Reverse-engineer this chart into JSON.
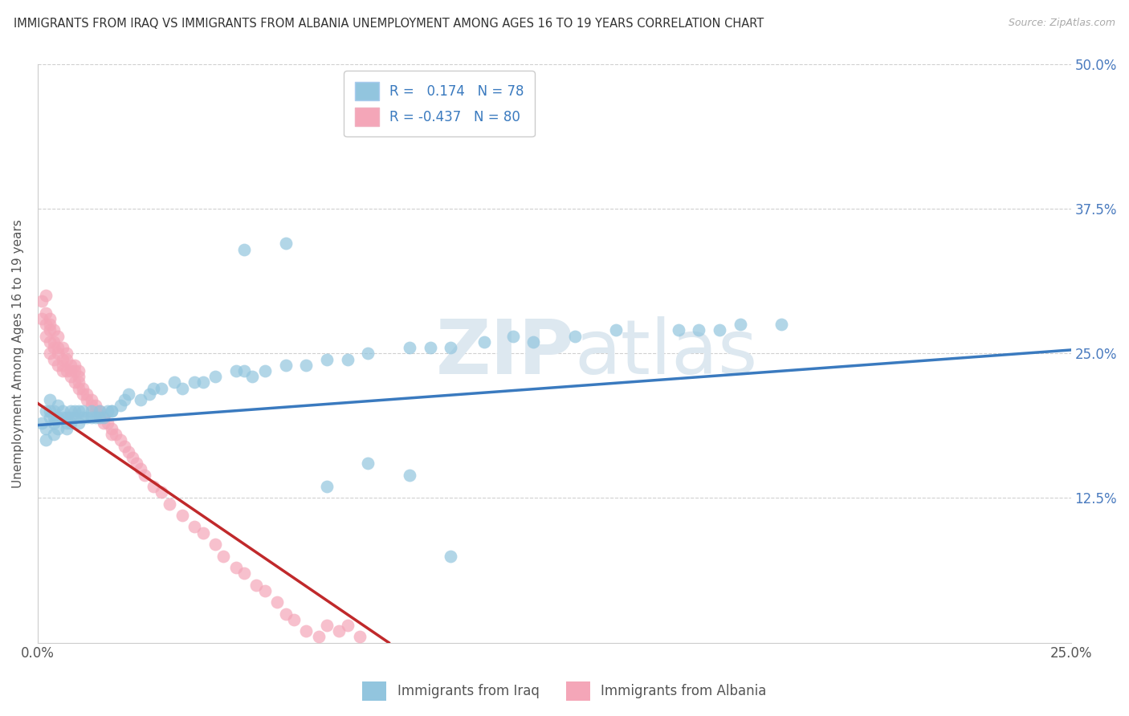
{
  "title": "IMMIGRANTS FROM IRAQ VS IMMIGRANTS FROM ALBANIA UNEMPLOYMENT AMONG AGES 16 TO 19 YEARS CORRELATION CHART",
  "source": "Source: ZipAtlas.com",
  "ylabel": "Unemployment Among Ages 16 to 19 years",
  "xlabel_iraq": "Immigrants from Iraq",
  "xlabel_albania": "Immigrants from Albania",
  "xlim": [
    0.0,
    0.25
  ],
  "ylim": [
    0.0,
    0.5
  ],
  "R_iraq": 0.174,
  "N_iraq": 78,
  "R_albania": -0.437,
  "N_albania": 80,
  "color_iraq": "#92c5de",
  "color_albania": "#f4a6b8",
  "line_color_iraq": "#3a7abf",
  "line_color_albania": "#c0292b",
  "background_color": "#ffffff",
  "grid_color": "#d0d0d0",
  "title_color": "#333333",
  "watermark_color": "#e0e8f0",
  "iraq_line_x0": 0.0,
  "iraq_line_y0": 0.188,
  "iraq_line_x1": 0.25,
  "iraq_line_y1": 0.253,
  "albania_line_x0": 0.0,
  "albania_line_y0": 0.207,
  "albania_line_x1": 0.085,
  "albania_line_y1": 0.0,
  "iraq_x": [
    0.001,
    0.002,
    0.002,
    0.002,
    0.003,
    0.003,
    0.003,
    0.004,
    0.004,
    0.004,
    0.004,
    0.005,
    0.005,
    0.005,
    0.006,
    0.006,
    0.007,
    0.007,
    0.007,
    0.008,
    0.008,
    0.008,
    0.009,
    0.009,
    0.01,
    0.01,
    0.011,
    0.011,
    0.012,
    0.013,
    0.013,
    0.014,
    0.015,
    0.015,
    0.016,
    0.017,
    0.018,
    0.018,
    0.02,
    0.021,
    0.022,
    0.025,
    0.027,
    0.028,
    0.03,
    0.033,
    0.035,
    0.038,
    0.04,
    0.043,
    0.048,
    0.05,
    0.052,
    0.055,
    0.06,
    0.065,
    0.07,
    0.075,
    0.08,
    0.09,
    0.095,
    0.1,
    0.108,
    0.115,
    0.12,
    0.13,
    0.14,
    0.155,
    0.16,
    0.165,
    0.17,
    0.18,
    0.05,
    0.06,
    0.07,
    0.08,
    0.09,
    0.1
  ],
  "iraq_y": [
    0.19,
    0.2,
    0.185,
    0.175,
    0.195,
    0.2,
    0.21,
    0.19,
    0.18,
    0.2,
    0.195,
    0.195,
    0.205,
    0.185,
    0.195,
    0.2,
    0.19,
    0.195,
    0.185,
    0.195,
    0.2,
    0.19,
    0.195,
    0.2,
    0.19,
    0.2,
    0.195,
    0.2,
    0.195,
    0.2,
    0.195,
    0.195,
    0.195,
    0.2,
    0.195,
    0.2,
    0.2,
    0.2,
    0.205,
    0.21,
    0.215,
    0.21,
    0.215,
    0.22,
    0.22,
    0.225,
    0.22,
    0.225,
    0.225,
    0.23,
    0.235,
    0.235,
    0.23,
    0.235,
    0.24,
    0.24,
    0.245,
    0.245,
    0.25,
    0.255,
    0.255,
    0.255,
    0.26,
    0.265,
    0.26,
    0.265,
    0.27,
    0.27,
    0.27,
    0.27,
    0.275,
    0.275,
    0.34,
    0.345,
    0.135,
    0.155,
    0.145,
    0.075
  ],
  "albania_x": [
    0.001,
    0.001,
    0.002,
    0.002,
    0.002,
    0.002,
    0.003,
    0.003,
    0.003,
    0.003,
    0.003,
    0.004,
    0.004,
    0.004,
    0.004,
    0.005,
    0.005,
    0.005,
    0.005,
    0.006,
    0.006,
    0.006,
    0.006,
    0.007,
    0.007,
    0.007,
    0.008,
    0.008,
    0.008,
    0.009,
    0.009,
    0.009,
    0.01,
    0.01,
    0.01,
    0.01,
    0.011,
    0.011,
    0.012,
    0.012,
    0.013,
    0.013,
    0.014,
    0.014,
    0.015,
    0.015,
    0.016,
    0.016,
    0.017,
    0.018,
    0.018,
    0.019,
    0.02,
    0.021,
    0.022,
    0.023,
    0.024,
    0.025,
    0.026,
    0.028,
    0.03,
    0.032,
    0.035,
    0.038,
    0.04,
    0.043,
    0.045,
    0.048,
    0.05,
    0.053,
    0.055,
    0.058,
    0.06,
    0.062,
    0.065,
    0.068,
    0.07,
    0.073,
    0.075,
    0.078
  ],
  "albania_y": [
    0.28,
    0.295,
    0.285,
    0.275,
    0.265,
    0.3,
    0.275,
    0.26,
    0.27,
    0.28,
    0.25,
    0.26,
    0.27,
    0.245,
    0.255,
    0.25,
    0.265,
    0.24,
    0.255,
    0.245,
    0.255,
    0.235,
    0.24,
    0.245,
    0.235,
    0.25,
    0.24,
    0.23,
    0.235,
    0.235,
    0.225,
    0.24,
    0.22,
    0.23,
    0.225,
    0.235,
    0.22,
    0.215,
    0.215,
    0.21,
    0.21,
    0.205,
    0.205,
    0.2,
    0.195,
    0.2,
    0.19,
    0.195,
    0.19,
    0.185,
    0.18,
    0.18,
    0.175,
    0.17,
    0.165,
    0.16,
    0.155,
    0.15,
    0.145,
    0.135,
    0.13,
    0.12,
    0.11,
    0.1,
    0.095,
    0.085,
    0.075,
    0.065,
    0.06,
    0.05,
    0.045,
    0.035,
    0.025,
    0.02,
    0.01,
    0.005,
    0.015,
    0.01,
    0.015,
    0.005
  ]
}
